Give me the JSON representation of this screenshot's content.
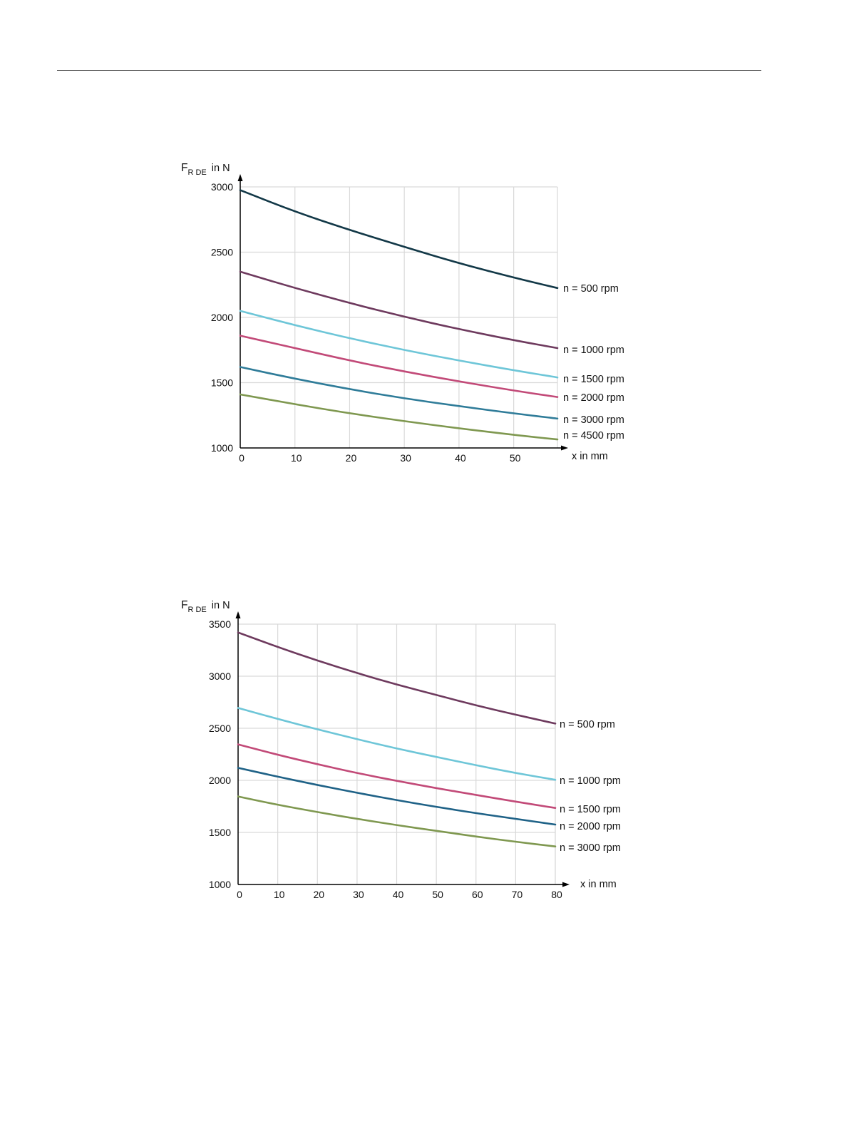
{
  "chart_data": [
    {
      "type": "line",
      "ylabel_main": "F",
      "ylabel_sub": "R DE",
      "ylabel_unit": "in N",
      "xlabel": "x in mm",
      "xlim": [
        0,
        58
      ],
      "ylim": [
        1000,
        3000
      ],
      "x_ticks": [
        0,
        10,
        20,
        30,
        40,
        50
      ],
      "y_ticks": [
        1000,
        1500,
        2000,
        2500,
        3000
      ],
      "grid": true,
      "legend": "right-end labels",
      "series": [
        {
          "name": "n = 500 rpm",
          "color": "#123847",
          "x": [
            0,
            10,
            20,
            30,
            40,
            50,
            58
          ],
          "y": [
            2975,
            2810,
            2670,
            2540,
            2415,
            2305,
            2225
          ]
        },
        {
          "name": "n = 1000 rpm",
          "color": "#6e3a5e",
          "x": [
            0,
            10,
            20,
            30,
            40,
            50,
            58
          ],
          "y": [
            2350,
            2225,
            2110,
            2005,
            1910,
            1825,
            1765
          ]
        },
        {
          "name": "n = 1500 rpm",
          "color": "#6ec6d8",
          "x": [
            0,
            10,
            20,
            30,
            40,
            50,
            58
          ],
          "y": [
            2050,
            1940,
            1840,
            1750,
            1670,
            1595,
            1540
          ]
        },
        {
          "name": "n = 2000 rpm",
          "color": "#c24a78",
          "x": [
            0,
            10,
            20,
            30,
            40,
            50,
            58
          ],
          "y": [
            1860,
            1765,
            1670,
            1585,
            1510,
            1440,
            1390
          ]
        },
        {
          "name": "n = 3000 rpm",
          "color": "#2f7c99",
          "x": [
            0,
            10,
            20,
            30,
            40,
            50,
            58
          ],
          "y": [
            1620,
            1530,
            1450,
            1380,
            1320,
            1265,
            1225
          ]
        },
        {
          "name": "n = 4500 rpm",
          "color": "#7f9850",
          "x": [
            0,
            10,
            20,
            30,
            40,
            50,
            58
          ],
          "y": [
            1410,
            1335,
            1265,
            1205,
            1150,
            1100,
            1065
          ]
        }
      ]
    },
    {
      "type": "line",
      "ylabel_main": "F",
      "ylabel_sub": "R DE",
      "ylabel_unit": "in N",
      "xlabel": "x in mm",
      "xlim": [
        0,
        80
      ],
      "ylim": [
        1000,
        3500
      ],
      "x_ticks": [
        0,
        10,
        20,
        30,
        40,
        50,
        60,
        70,
        80
      ],
      "y_ticks": [
        1000,
        1500,
        2000,
        2500,
        3000,
        3500
      ],
      "grid": true,
      "legend": "right-end labels",
      "series": [
        {
          "name": "n = 500 rpm",
          "color": "#6e3a5e",
          "x": [
            0,
            10,
            20,
            30,
            40,
            50,
            60,
            70,
            80
          ],
          "y": [
            3420,
            3280,
            3150,
            3030,
            2920,
            2820,
            2720,
            2630,
            2545
          ]
        },
        {
          "name": "n = 1000 rpm",
          "color": "#6ec6d8",
          "x": [
            0,
            10,
            20,
            30,
            40,
            50,
            60,
            70,
            80
          ],
          "y": [
            2695,
            2590,
            2490,
            2395,
            2305,
            2225,
            2145,
            2070,
            2005
          ]
        },
        {
          "name": "n = 1500 rpm",
          "color": "#c24a78",
          "x": [
            0,
            10,
            20,
            30,
            40,
            50,
            60,
            70,
            80
          ],
          "y": [
            2345,
            2245,
            2155,
            2070,
            1995,
            1925,
            1860,
            1795,
            1735
          ]
        },
        {
          "name": "n = 2000 rpm",
          "color": "#1f6287",
          "x": [
            0,
            10,
            20,
            30,
            40,
            50,
            60,
            70,
            80
          ],
          "y": [
            2120,
            2035,
            1955,
            1880,
            1810,
            1745,
            1685,
            1630,
            1575
          ]
        },
        {
          "name": "n = 3000 rpm",
          "color": "#7f9850",
          "x": [
            0,
            10,
            20,
            30,
            40,
            50,
            60,
            70,
            80
          ],
          "y": [
            1845,
            1765,
            1695,
            1630,
            1570,
            1515,
            1460,
            1410,
            1365
          ]
        }
      ]
    }
  ]
}
